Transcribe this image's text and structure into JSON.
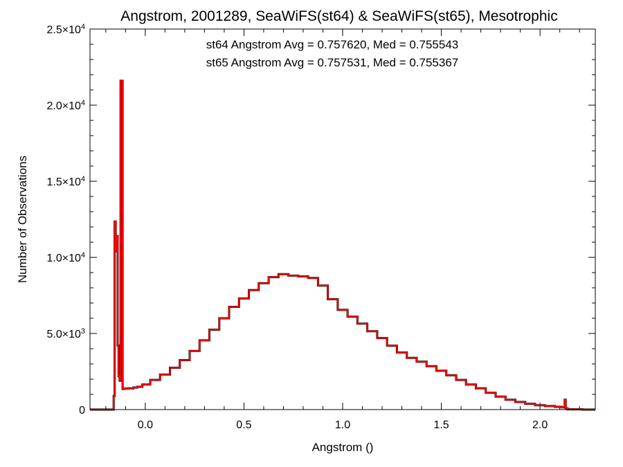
{
  "chart_data": {
    "type": "line",
    "title": "Angstrom, 2001289, SeaWiFS(st64) & SeaWiFS(st65), Mesotrophic",
    "xlabel": "Angstrom ()",
    "ylabel": "Number of Observations",
    "xlim": [
      -0.28,
      2.28
    ],
    "ylim": [
      0,
      25000
    ],
    "grid": false,
    "x_ticks": [
      {
        "value": 0.0,
        "label": "0.0"
      },
      {
        "value": 0.5,
        "label": "0.5"
      },
      {
        "value": 1.0,
        "label": "1.0"
      },
      {
        "value": 1.5,
        "label": "1.5"
      },
      {
        "value": 2.0,
        "label": "2.0"
      }
    ],
    "y_ticks": [
      {
        "value": 0,
        "mant": "0",
        "exp": ""
      },
      {
        "value": 5000,
        "mant": "5.0×10",
        "exp": "3"
      },
      {
        "value": 10000,
        "mant": "1.0×10",
        "exp": "4"
      },
      {
        "value": 15000,
        "mant": "1.5×10",
        "exp": "4"
      },
      {
        "value": 20000,
        "mant": "2.0×10",
        "exp": "4"
      },
      {
        "value": 25000,
        "mant": "2.5×10",
        "exp": "4"
      }
    ],
    "annotations": [
      {
        "text": "st64 Angstrom Avg = 0.757620, Med = 0.755543",
        "color": "#000000"
      },
      {
        "text": "st65 Angstrom Avg = 0.757531, Med = 0.755367",
        "color": "#ff0000"
      }
    ],
    "series": [
      {
        "color": "#000000",
        "points": [
          [
            -0.28,
            0
          ],
          [
            -0.16,
            0
          ],
          [
            -0.16,
            900
          ],
          [
            -0.155,
            900
          ],
          [
            -0.155,
            12350
          ],
          [
            -0.15,
            12350
          ],
          [
            -0.15,
            10400
          ],
          [
            -0.145,
            10400
          ],
          [
            -0.145,
            11400
          ],
          [
            -0.14,
            11400
          ],
          [
            -0.14,
            4200
          ],
          [
            -0.135,
            4200
          ],
          [
            -0.135,
            2200
          ],
          [
            -0.13,
            2200
          ],
          [
            -0.13,
            1900
          ],
          [
            -0.125,
            1900
          ],
          [
            -0.125,
            21600
          ],
          [
            -0.115,
            21600
          ],
          [
            -0.115,
            1350
          ],
          [
            -0.1,
            1380
          ],
          [
            -0.07,
            1400
          ],
          [
            -0.05,
            1450
          ],
          [
            -0.03,
            1500
          ],
          [
            0.0,
            1650
          ],
          [
            0.05,
            1950
          ],
          [
            0.1,
            2300
          ],
          [
            0.15,
            2750
          ],
          [
            0.2,
            3250
          ],
          [
            0.25,
            3850
          ],
          [
            0.3,
            4550
          ],
          [
            0.35,
            5250
          ],
          [
            0.4,
            6000
          ],
          [
            0.45,
            6750
          ],
          [
            0.5,
            7300
          ],
          [
            0.55,
            7850
          ],
          [
            0.6,
            8300
          ],
          [
            0.65,
            8700
          ],
          [
            0.7,
            8900
          ],
          [
            0.75,
            8800
          ],
          [
            0.8,
            8750
          ],
          [
            0.85,
            8650
          ],
          [
            0.9,
            8150
          ],
          [
            0.95,
            7250
          ],
          [
            1.0,
            6550
          ],
          [
            1.05,
            6100
          ],
          [
            1.1,
            5650
          ],
          [
            1.15,
            5150
          ],
          [
            1.2,
            4700
          ],
          [
            1.25,
            4200
          ],
          [
            1.3,
            3750
          ],
          [
            1.35,
            3400
          ],
          [
            1.4,
            3150
          ],
          [
            1.45,
            2850
          ],
          [
            1.5,
            2550
          ],
          [
            1.55,
            2250
          ],
          [
            1.6,
            1950
          ],
          [
            1.65,
            1650
          ],
          [
            1.7,
            1400
          ],
          [
            1.75,
            1100
          ],
          [
            1.8,
            850
          ],
          [
            1.85,
            650
          ],
          [
            1.9,
            500
          ],
          [
            1.95,
            380
          ],
          [
            2.0,
            280
          ],
          [
            2.05,
            230
          ],
          [
            2.1,
            180
          ],
          [
            2.12,
            150
          ],
          [
            2.125,
            150
          ],
          [
            2.125,
            650
          ],
          [
            2.13,
            650
          ],
          [
            2.13,
            80
          ],
          [
            2.15,
            20
          ],
          [
            2.28,
            0
          ]
        ]
      },
      {
        "color": "#ff0000",
        "points": [
          [
            -0.28,
            0
          ],
          [
            -0.16,
            0
          ],
          [
            -0.16,
            900
          ],
          [
            -0.155,
            900
          ],
          [
            -0.155,
            12350
          ],
          [
            -0.15,
            12350
          ],
          [
            -0.15,
            10400
          ],
          [
            -0.145,
            10400
          ],
          [
            -0.145,
            11400
          ],
          [
            -0.14,
            11400
          ],
          [
            -0.14,
            4200
          ],
          [
            -0.135,
            4200
          ],
          [
            -0.135,
            2200
          ],
          [
            -0.13,
            2200
          ],
          [
            -0.13,
            1900
          ],
          [
            -0.125,
            1900
          ],
          [
            -0.125,
            21600
          ],
          [
            -0.115,
            21600
          ],
          [
            -0.115,
            1350
          ],
          [
            -0.1,
            1380
          ],
          [
            -0.07,
            1400
          ],
          [
            -0.05,
            1450
          ],
          [
            -0.03,
            1500
          ],
          [
            0.0,
            1650
          ],
          [
            0.05,
            1950
          ],
          [
            0.1,
            2300
          ],
          [
            0.15,
            2750
          ],
          [
            0.2,
            3250
          ],
          [
            0.25,
            3850
          ],
          [
            0.3,
            4550
          ],
          [
            0.35,
            5250
          ],
          [
            0.4,
            6000
          ],
          [
            0.45,
            6750
          ],
          [
            0.5,
            7300
          ],
          [
            0.55,
            7850
          ],
          [
            0.6,
            8300
          ],
          [
            0.65,
            8700
          ],
          [
            0.7,
            8900
          ],
          [
            0.75,
            8800
          ],
          [
            0.8,
            8750
          ],
          [
            0.85,
            8650
          ],
          [
            0.9,
            8150
          ],
          [
            0.95,
            7250
          ],
          [
            1.0,
            6550
          ],
          [
            1.05,
            6100
          ],
          [
            1.1,
            5650
          ],
          [
            1.15,
            5150
          ],
          [
            1.2,
            4700
          ],
          [
            1.25,
            4200
          ],
          [
            1.3,
            3750
          ],
          [
            1.35,
            3400
          ],
          [
            1.4,
            3150
          ],
          [
            1.45,
            2850
          ],
          [
            1.5,
            2550
          ],
          [
            1.55,
            2250
          ],
          [
            1.6,
            1950
          ],
          [
            1.65,
            1650
          ],
          [
            1.7,
            1400
          ],
          [
            1.75,
            1100
          ],
          [
            1.8,
            850
          ],
          [
            1.85,
            650
          ],
          [
            1.9,
            500
          ],
          [
            1.95,
            380
          ],
          [
            2.0,
            280
          ],
          [
            2.05,
            230
          ],
          [
            2.1,
            180
          ],
          [
            2.12,
            150
          ],
          [
            2.125,
            150
          ],
          [
            2.125,
            650
          ],
          [
            2.13,
            650
          ],
          [
            2.13,
            80
          ],
          [
            2.15,
            20
          ],
          [
            2.28,
            0
          ]
        ]
      }
    ]
  }
}
